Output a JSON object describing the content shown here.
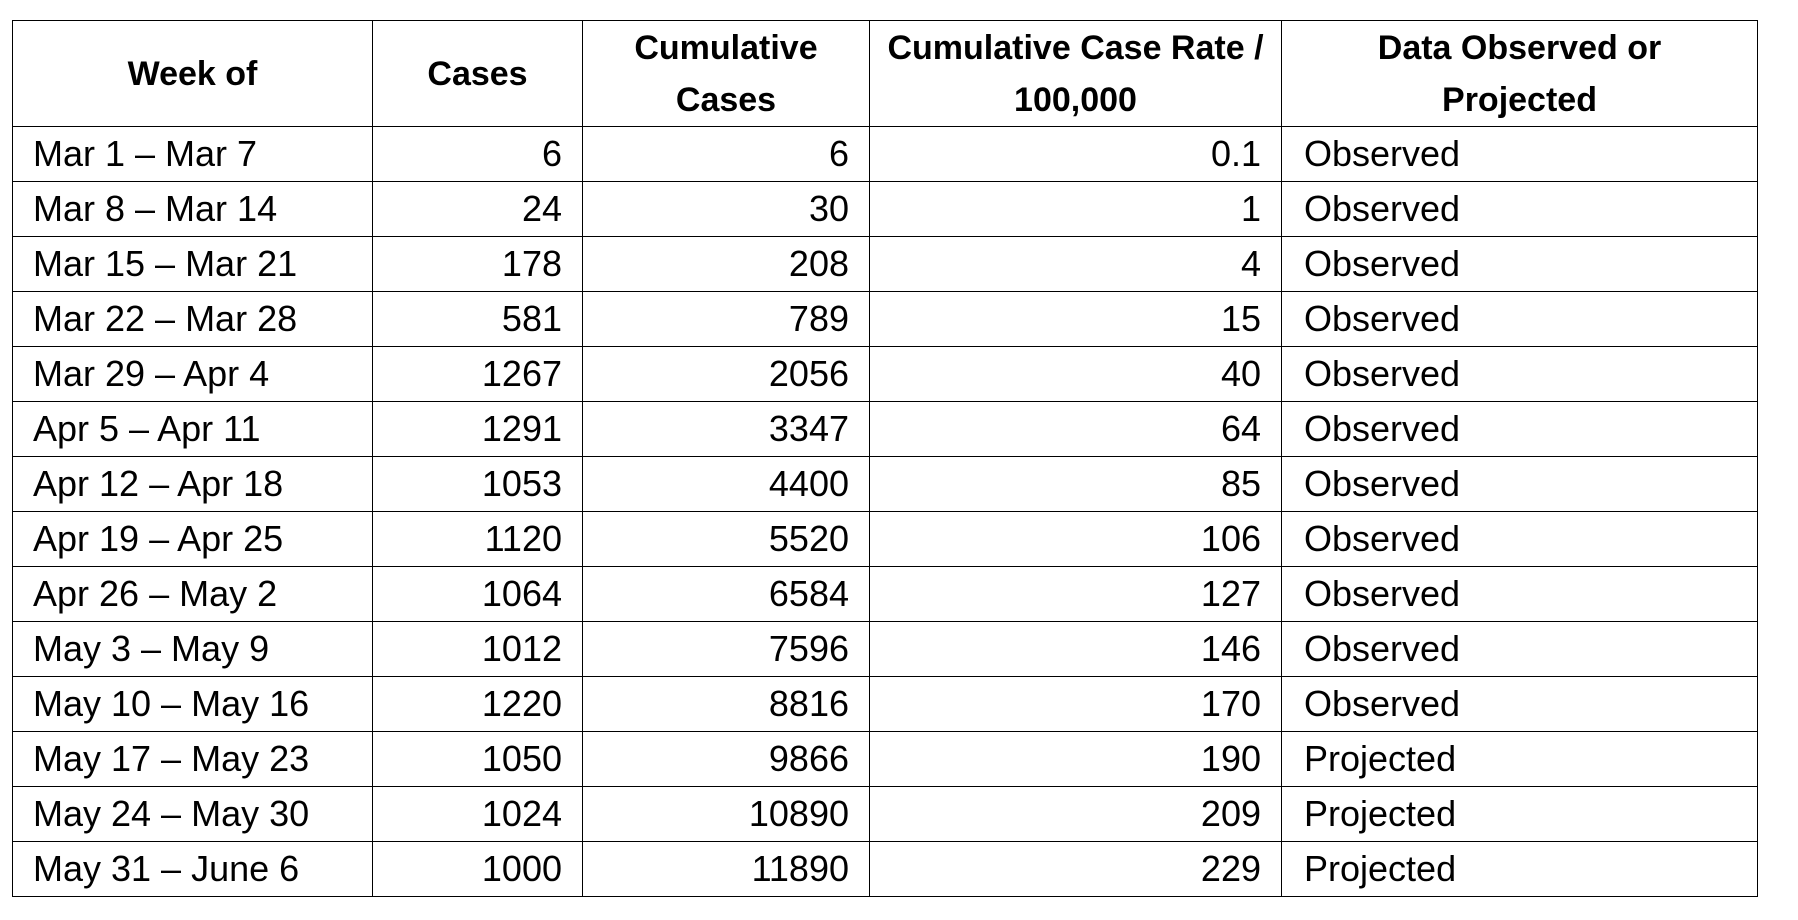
{
  "table": {
    "headers": [
      "Week of",
      "Cases",
      "Cumulative Cases",
      "Cumulative Case Rate / 100,000",
      "Data Observed or Projected"
    ],
    "rows": [
      [
        "Mar 1 – Mar 7",
        "6",
        "6",
        "0.1",
        "Observed"
      ],
      [
        "Mar 8 – Mar 14",
        "24",
        "30",
        "1",
        "Observed"
      ],
      [
        "Mar 15 – Mar 21",
        "178",
        "208",
        "4",
        "Observed"
      ],
      [
        "Mar 22 – Mar 28",
        "581",
        "789",
        "15",
        "Observed"
      ],
      [
        "Mar 29 – Apr 4",
        "1267",
        "2056",
        "40",
        "Observed"
      ],
      [
        "Apr 5 – Apr 11",
        "1291",
        "3347",
        "64",
        "Observed"
      ],
      [
        "Apr 12 – Apr 18",
        "1053",
        "4400",
        "85",
        "Observed"
      ],
      [
        "Apr 19 – Apr 25",
        "1120",
        "5520",
        "106",
        "Observed"
      ],
      [
        "Apr 26 – May 2",
        "1064",
        "6584",
        "127",
        "Observed"
      ],
      [
        "May 3 – May 9",
        "1012",
        "7596",
        "146",
        "Observed"
      ],
      [
        "May 10 – May 16",
        "1220",
        "8816",
        "170",
        "Observed"
      ],
      [
        "May 17 – May 23",
        "1050",
        "9866",
        "190",
        "Projected"
      ],
      [
        "May 24 – May 30",
        "1024",
        "10890",
        "209",
        "Projected"
      ],
      [
        "May 31 – June 6",
        "1000",
        "11890",
        "229",
        "Projected"
      ]
    ]
  }
}
